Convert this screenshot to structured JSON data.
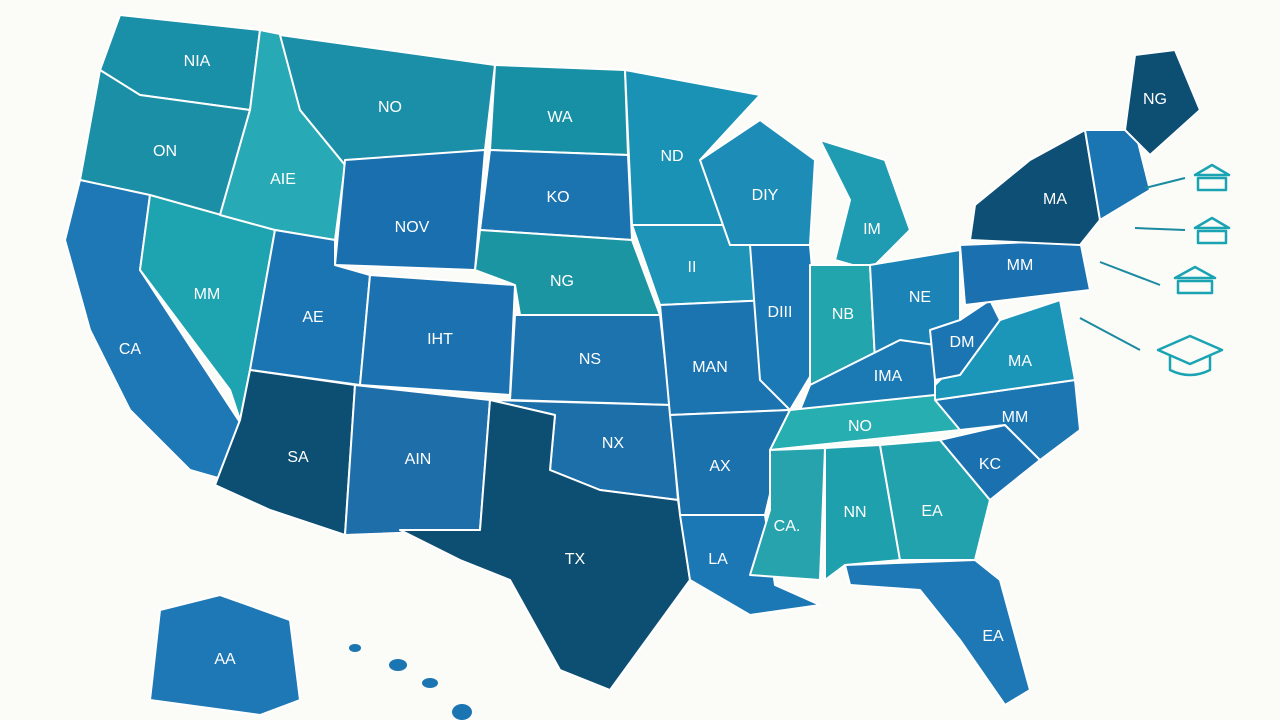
{
  "map": {
    "regions": [
      {
        "label": "NIA"
      },
      {
        "label": "ON"
      },
      {
        "label": "CA"
      },
      {
        "label": "AIE"
      },
      {
        "label": "MM"
      },
      {
        "label": "NO"
      },
      {
        "label": "NOV"
      },
      {
        "label": "AE"
      },
      {
        "label": "SA"
      },
      {
        "label": "IHT"
      },
      {
        "label": "AIN"
      },
      {
        "label": "WA"
      },
      {
        "label": "KO"
      },
      {
        "label": "NG"
      },
      {
        "label": "NS"
      },
      {
        "label": "NX"
      },
      {
        "label": "TX"
      },
      {
        "label": "ND"
      },
      {
        "label": "II"
      },
      {
        "label": "MAN"
      },
      {
        "label": "AX"
      },
      {
        "label": "LA"
      },
      {
        "label": "DIY"
      },
      {
        "label": "DIII"
      },
      {
        "label": "IM"
      },
      {
        "label": "NB"
      },
      {
        "label": "NE"
      },
      {
        "label": "IMA"
      },
      {
        "label": "NO"
      },
      {
        "label": "CA."
      },
      {
        "label": "NN"
      },
      {
        "label": "EA"
      },
      {
        "label": "EA"
      },
      {
        "label": "KC"
      },
      {
        "label": "MM"
      },
      {
        "label": "MA"
      },
      {
        "label": "DM"
      },
      {
        "label": "MM"
      },
      {
        "label": "MA"
      },
      {
        "label": "NG"
      },
      {
        "label": "AA"
      }
    ]
  }
}
